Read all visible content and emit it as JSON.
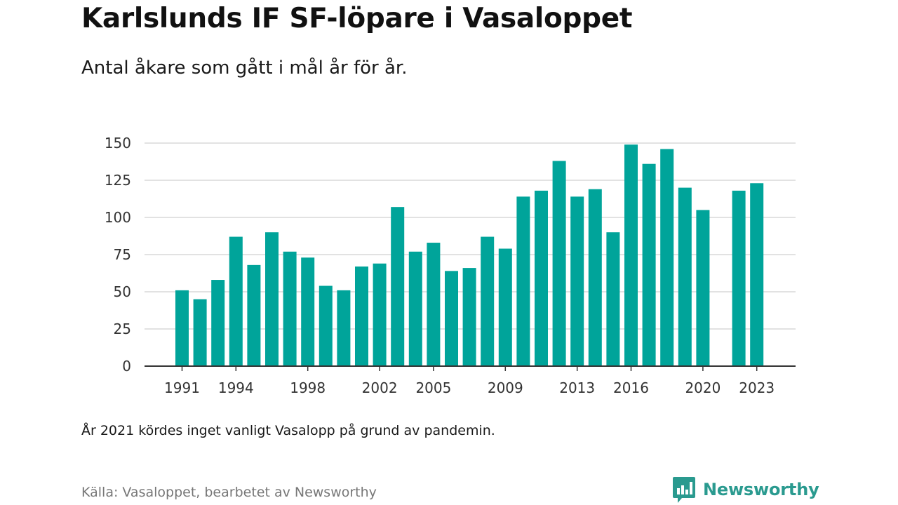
{
  "header": {
    "title": "Karlslunds IF SF-löpare i Vasaloppet",
    "subtitle": "Antal åkare som gått i mål år för år."
  },
  "footer": {
    "note": "År 2021 kördes inget vanligt Vasalopp på grund av pandemin.",
    "source": "Källa: Vasaloppet, bearbetet av Newsworthy",
    "brand": "Newsworthy",
    "brand_icon": "newsworthy-logo-icon"
  },
  "colors": {
    "bar": "#00A49A",
    "grid": "#d9d9d9",
    "axis": "#333333",
    "brand": "#2a9a8f"
  },
  "chart_data": {
    "type": "bar",
    "x": [
      1991,
      1992,
      1993,
      1994,
      1995,
      1996,
      1997,
      1998,
      1999,
      2000,
      2001,
      2002,
      2003,
      2004,
      2005,
      2006,
      2007,
      2008,
      2009,
      2010,
      2011,
      2012,
      2013,
      2014,
      2015,
      2016,
      2017,
      2018,
      2019,
      2020,
      2021,
      2022,
      2023
    ],
    "values": [
      51,
      45,
      58,
      87,
      68,
      90,
      77,
      73,
      54,
      51,
      67,
      69,
      107,
      77,
      83,
      64,
      66,
      87,
      79,
      114,
      118,
      138,
      114,
      119,
      90,
      149,
      136,
      146,
      120,
      105,
      null,
      118,
      123
    ],
    "x_tick_labels": [
      "1991",
      "1994",
      "1998",
      "2002",
      "2005",
      "2009",
      "2013",
      "2016",
      "2020",
      "2023"
    ],
    "y_ticks": [
      0,
      25,
      50,
      75,
      100,
      125,
      150
    ],
    "ylim": [
      0,
      150
    ],
    "grid": true
  }
}
